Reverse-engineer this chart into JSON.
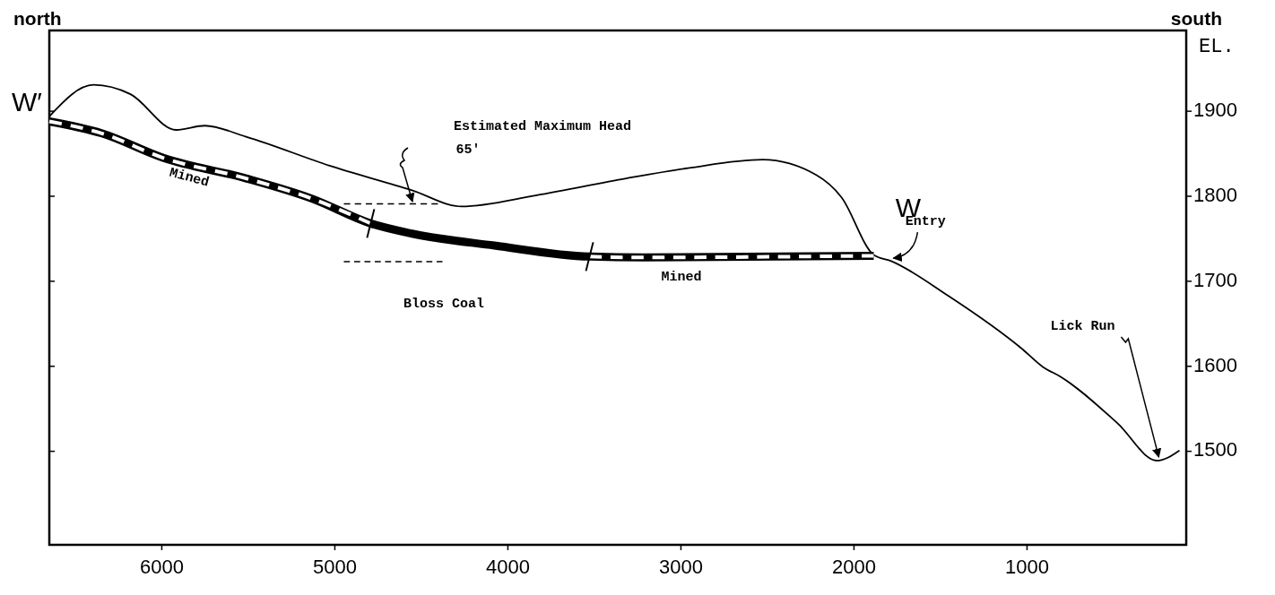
{
  "chart_data": {
    "type": "line",
    "ylabel": "EL.",
    "xlim": [
      6650,
      80
    ],
    "ylim": [
      1390,
      1995
    ],
    "xticks": [
      6000,
      5000,
      4000,
      3000,
      2000,
      1000
    ],
    "yticks": [
      1500,
      1600,
      1700,
      1800,
      1900
    ],
    "grid": false,
    "series": [
      {
        "color": "#000000",
        "x": [
          6650,
          6394,
          6181,
          5917,
          5751,
          5513,
          5031,
          4554,
          4269,
          3839,
          3316,
          2959,
          2528,
          2218,
          2073,
          1886,
          1788,
          1456,
          1026,
          907,
          808,
          477,
          249,
          119
        ],
        "values": [
          1894,
          1931,
          1920,
          1878,
          1883,
          1870,
          1836,
          1807,
          1788,
          1801,
          1821,
          1833,
          1843,
          1825,
          1799,
          1731,
          1724,
          1683,
          1620,
          1599,
          1588,
          1533,
          1489,
          1501
        ]
      },
      {
        "color": "#000000",
        "x": [
          6650,
          6347,
          5990,
          5513,
          5130,
          4793,
          4554,
          4078,
          3528,
          3218,
          1886
        ],
        "values": [
          1888,
          1874,
          1845,
          1821,
          1797,
          1768,
          1756,
          1742,
          1729,
          1728,
          1730
        ]
      },
      {
        "color": "#ffffff",
        "line_style": "dashed",
        "x": [
          6650,
          6347,
          5990,
          5513,
          5130,
          4793
        ],
        "values": [
          1888,
          1874,
          1845,
          1821,
          1797,
          1768
        ]
      },
      {
        "color": "#ffffff",
        "line_style": "dashed",
        "x": [
          3528,
          3218,
          1886
        ],
        "values": [
          1729,
          1728,
          1730
        ]
      },
      {
        "color": "#000000",
        "line_style": "dashed",
        "x": [
          4948,
          4404
        ],
        "values": [
          1791,
          1791
        ]
      },
      {
        "color": "#000000",
        "line_style": "dashed",
        "x": [
          4948,
          4378
        ],
        "values": [
          1723,
          1723
        ]
      }
    ],
    "annotations": [
      "north",
      "south",
      "W′",
      "W",
      "Mined",
      "Mined",
      "Estimated Maximum Head",
      "65′",
      "Bloss Coal",
      {
        "text": "Entry",
        "x": 1788,
        "y": 1724
      },
      {
        "text": "Lick Run",
        "x": 249,
        "y": 1489
      }
    ]
  }
}
